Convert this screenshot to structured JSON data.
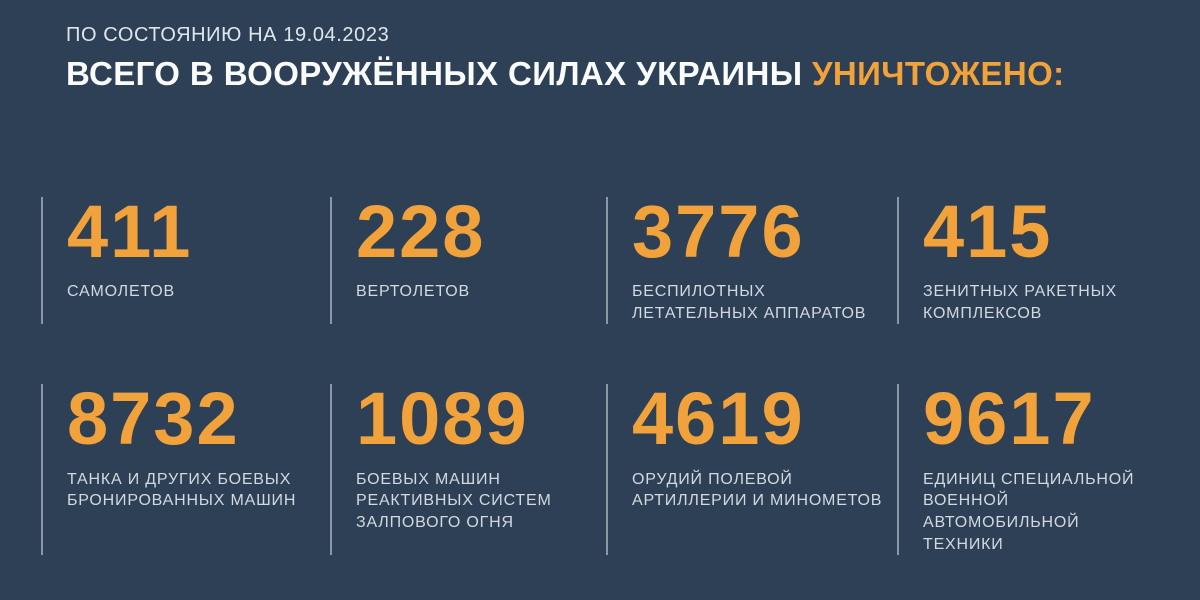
{
  "page": {
    "background_color": "#2D4055",
    "accent_color": "#F2A23A",
    "divider_color": "#D8E0E8"
  },
  "header": {
    "date_line": "ПО СОСТОЯНИЮ НА 19.04.2023",
    "title_white": "ВСЕГО В ВООРУЖЁННЫХ СИЛАХ УКРАИНЫ",
    "title_accent": "УНИЧТОЖЕНО:"
  },
  "stats": [
    {
      "value": "411",
      "label": "САМОЛЕТОВ"
    },
    {
      "value": "228",
      "label": "ВЕРТОЛЕТОВ"
    },
    {
      "value": "3776",
      "label": "БЕСПИЛОТНЫХ\nЛЕТАТЕЛЬНЫХ АППАРАТОВ"
    },
    {
      "value": "415",
      "label": "ЗЕНИТНЫХ РАКЕТНЫХ\nКОМПЛЕКСОВ"
    },
    {
      "value": "8732",
      "label": "ТАНКА И ДРУГИХ БОЕВЫХ\nБРОНИРОВАННЫХ МАШИН"
    },
    {
      "value": "1089",
      "label": "БОЕВЫХ МАШИН\nРЕАКТИВНЫХ СИСТЕМ\nЗАЛПОВОГО ОГНЯ"
    },
    {
      "value": "4619",
      "label": "ОРУДИЙ ПОЛЕВОЙ\nАРТИЛЛЕРИИ И МИНОМЕТОВ"
    },
    {
      "value": "9617",
      "label": "ЕДИНИЦ СПЕЦИАЛЬНОЙ\nВОЕННОЙ АВТОМОБИЛЬНОЙ\nТЕХНИКИ"
    }
  ],
  "chart_data": {
    "type": "table",
    "title": "ВСЕГО В ВООРУЖЁННЫХ СИЛАХ УКРАИНЫ УНИЧТОЖЕНО:",
    "subtitle": "ПО СОСТОЯНИЮ НА 19.04.2023",
    "categories": [
      "САМОЛЕТОВ",
      "ВЕРТОЛЕТОВ",
      "БЕСПИЛОТНЫХ ЛЕТАТЕЛЬНЫХ АППАРАТОВ",
      "ЗЕНИТНЫХ РАКЕТНЫХ КОМПЛЕКСОВ",
      "ТАНКА И ДРУГИХ БОЕВЫХ БРОНИРОВАННЫХ МАШИН",
      "БОЕВЫХ МАШИН РЕАКТИВНЫХ СИСТЕМ ЗАЛПОВОГО ОГНЯ",
      "ОРУДИЙ ПОЛЕВОЙ АРТИЛЛЕРИИ И МИНОМЕТОВ",
      "ЕДИНИЦ СПЕЦИАЛЬНОЙ ВОЕННОЙ АВТОМОБИЛЬНОЙ ТЕХНИКИ"
    ],
    "values": [
      411,
      228,
      3776,
      415,
      8732,
      1089,
      4619,
      9617
    ],
    "layout": "4x2 grid of big-number stat cards, legend none, grid off"
  }
}
